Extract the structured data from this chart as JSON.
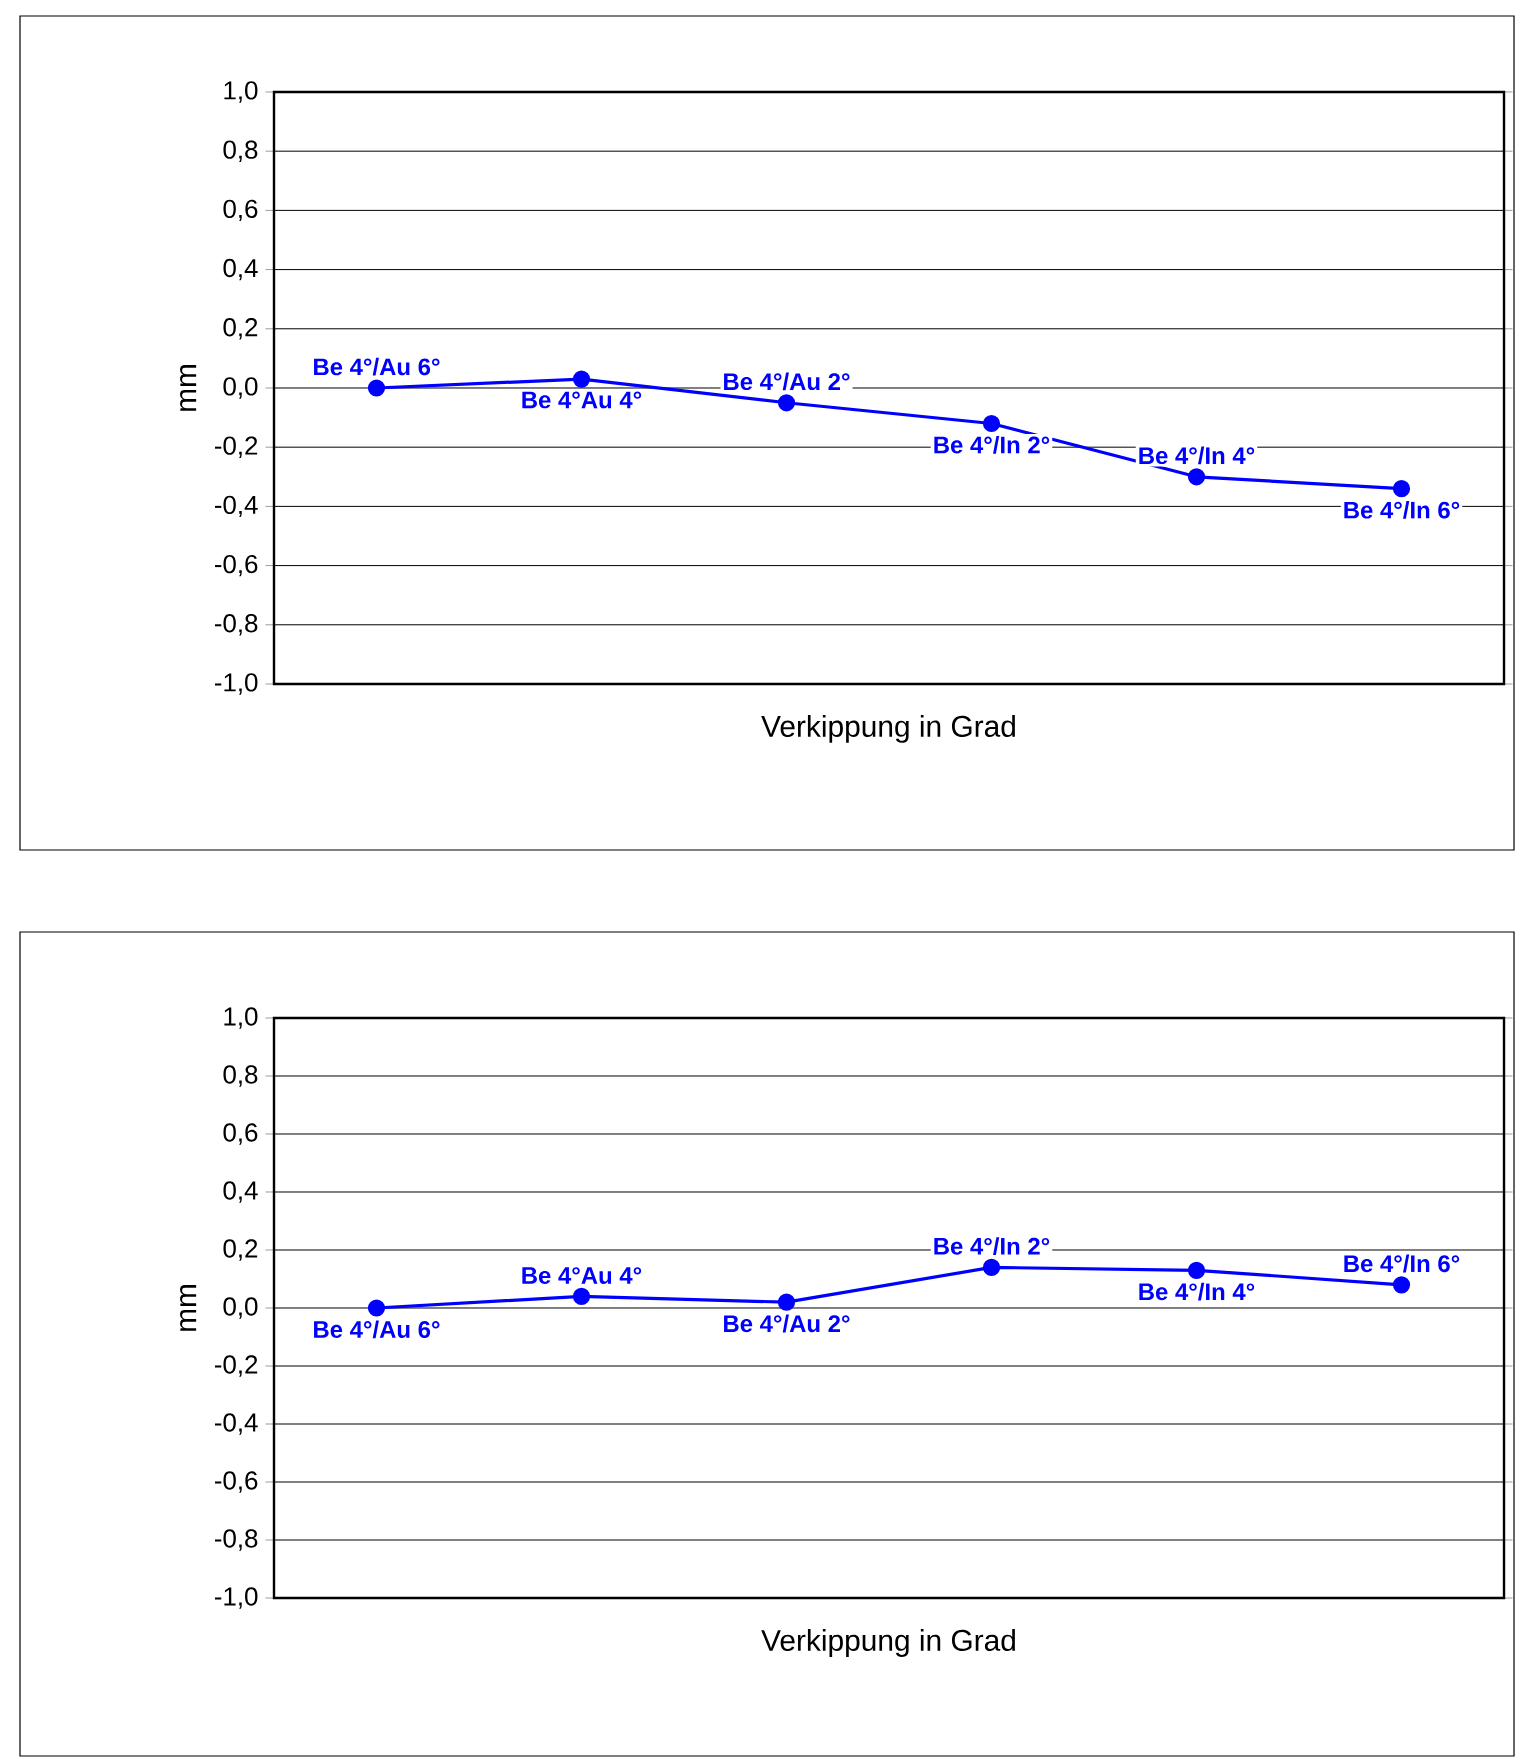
{
  "chart_data": [
    {
      "type": "line",
      "xlabel": "Verkippung in Grad",
      "ylabel": "mm",
      "categories": [
        null,
        null,
        null,
        null,
        null,
        null
      ],
      "series": [
        {
          "color": "#0000ff",
          "values": [
            0,
            0.03,
            -0.05,
            -0.12,
            -0.3,
            -0.34
          ],
          "value_labels": [
            "Be 4°/Au 6°",
            "Be 4°Au 4°",
            "Be 4°/Au 2°",
            "Be 4°/In 2°",
            "Be 4°/In 4°",
            "Be 4°/In 6°"
          ]
        }
      ],
      "ylim": [
        -1,
        1
      ],
      "yticks": [
        {
          "value": -1,
          "label": "-1,0"
        },
        {
          "value": -0.8,
          "label": "-0,8"
        },
        {
          "value": -0.6,
          "label": "-0,6"
        },
        {
          "value": -0.4,
          "label": "-0,4"
        },
        {
          "value": -0.2,
          "label": "-0,2"
        },
        {
          "value": 0,
          "label": "0,0"
        },
        {
          "value": 0.2,
          "label": "0,2"
        },
        {
          "value": 0.4,
          "label": "0,4"
        },
        {
          "value": 0.6,
          "label": "0,6"
        },
        {
          "value": 0.8,
          "label": "0,8"
        },
        {
          "value": 1,
          "label": "1,0"
        }
      ],
      "grid": "y",
      "marker": "circle",
      "line_style": "solid"
    },
    {
      "type": "line",
      "xlabel": "Verkippung in Grad",
      "ylabel": "mm",
      "categories": [
        null,
        null,
        null,
        null,
        null,
        null
      ],
      "series": [
        {
          "color": "#0000ff",
          "values": [
            0,
            0.04,
            0.02,
            0.14,
            0.13,
            0.08
          ],
          "value_labels": [
            "Be 4°/Au 6°",
            "Be 4°Au 4°",
            "Be 4°/Au 2°",
            "Be 4°/In 2°",
            "Be 4°/In 4°",
            "Be 4°/In 6°"
          ]
        }
      ],
      "ylim": [
        -1,
        1
      ],
      "yticks": [
        {
          "value": -1,
          "label": "-1,0"
        },
        {
          "value": -0.8,
          "label": "-0,8"
        },
        {
          "value": -0.6,
          "label": "-0,6"
        },
        {
          "value": -0.4,
          "label": "-0,4"
        },
        {
          "value": -0.2,
          "label": "-0,2"
        },
        {
          "value": 0,
          "label": "0,0"
        },
        {
          "value": 0.2,
          "label": "0,2"
        },
        {
          "value": 0.4,
          "label": "0,4"
        },
        {
          "value": 0.6,
          "label": "0,6"
        },
        {
          "value": 0.8,
          "label": "0,8"
        },
        {
          "value": 1,
          "label": "1,0"
        }
      ],
      "grid": "y",
      "marker": "circle",
      "line_style": "solid"
    }
  ]
}
